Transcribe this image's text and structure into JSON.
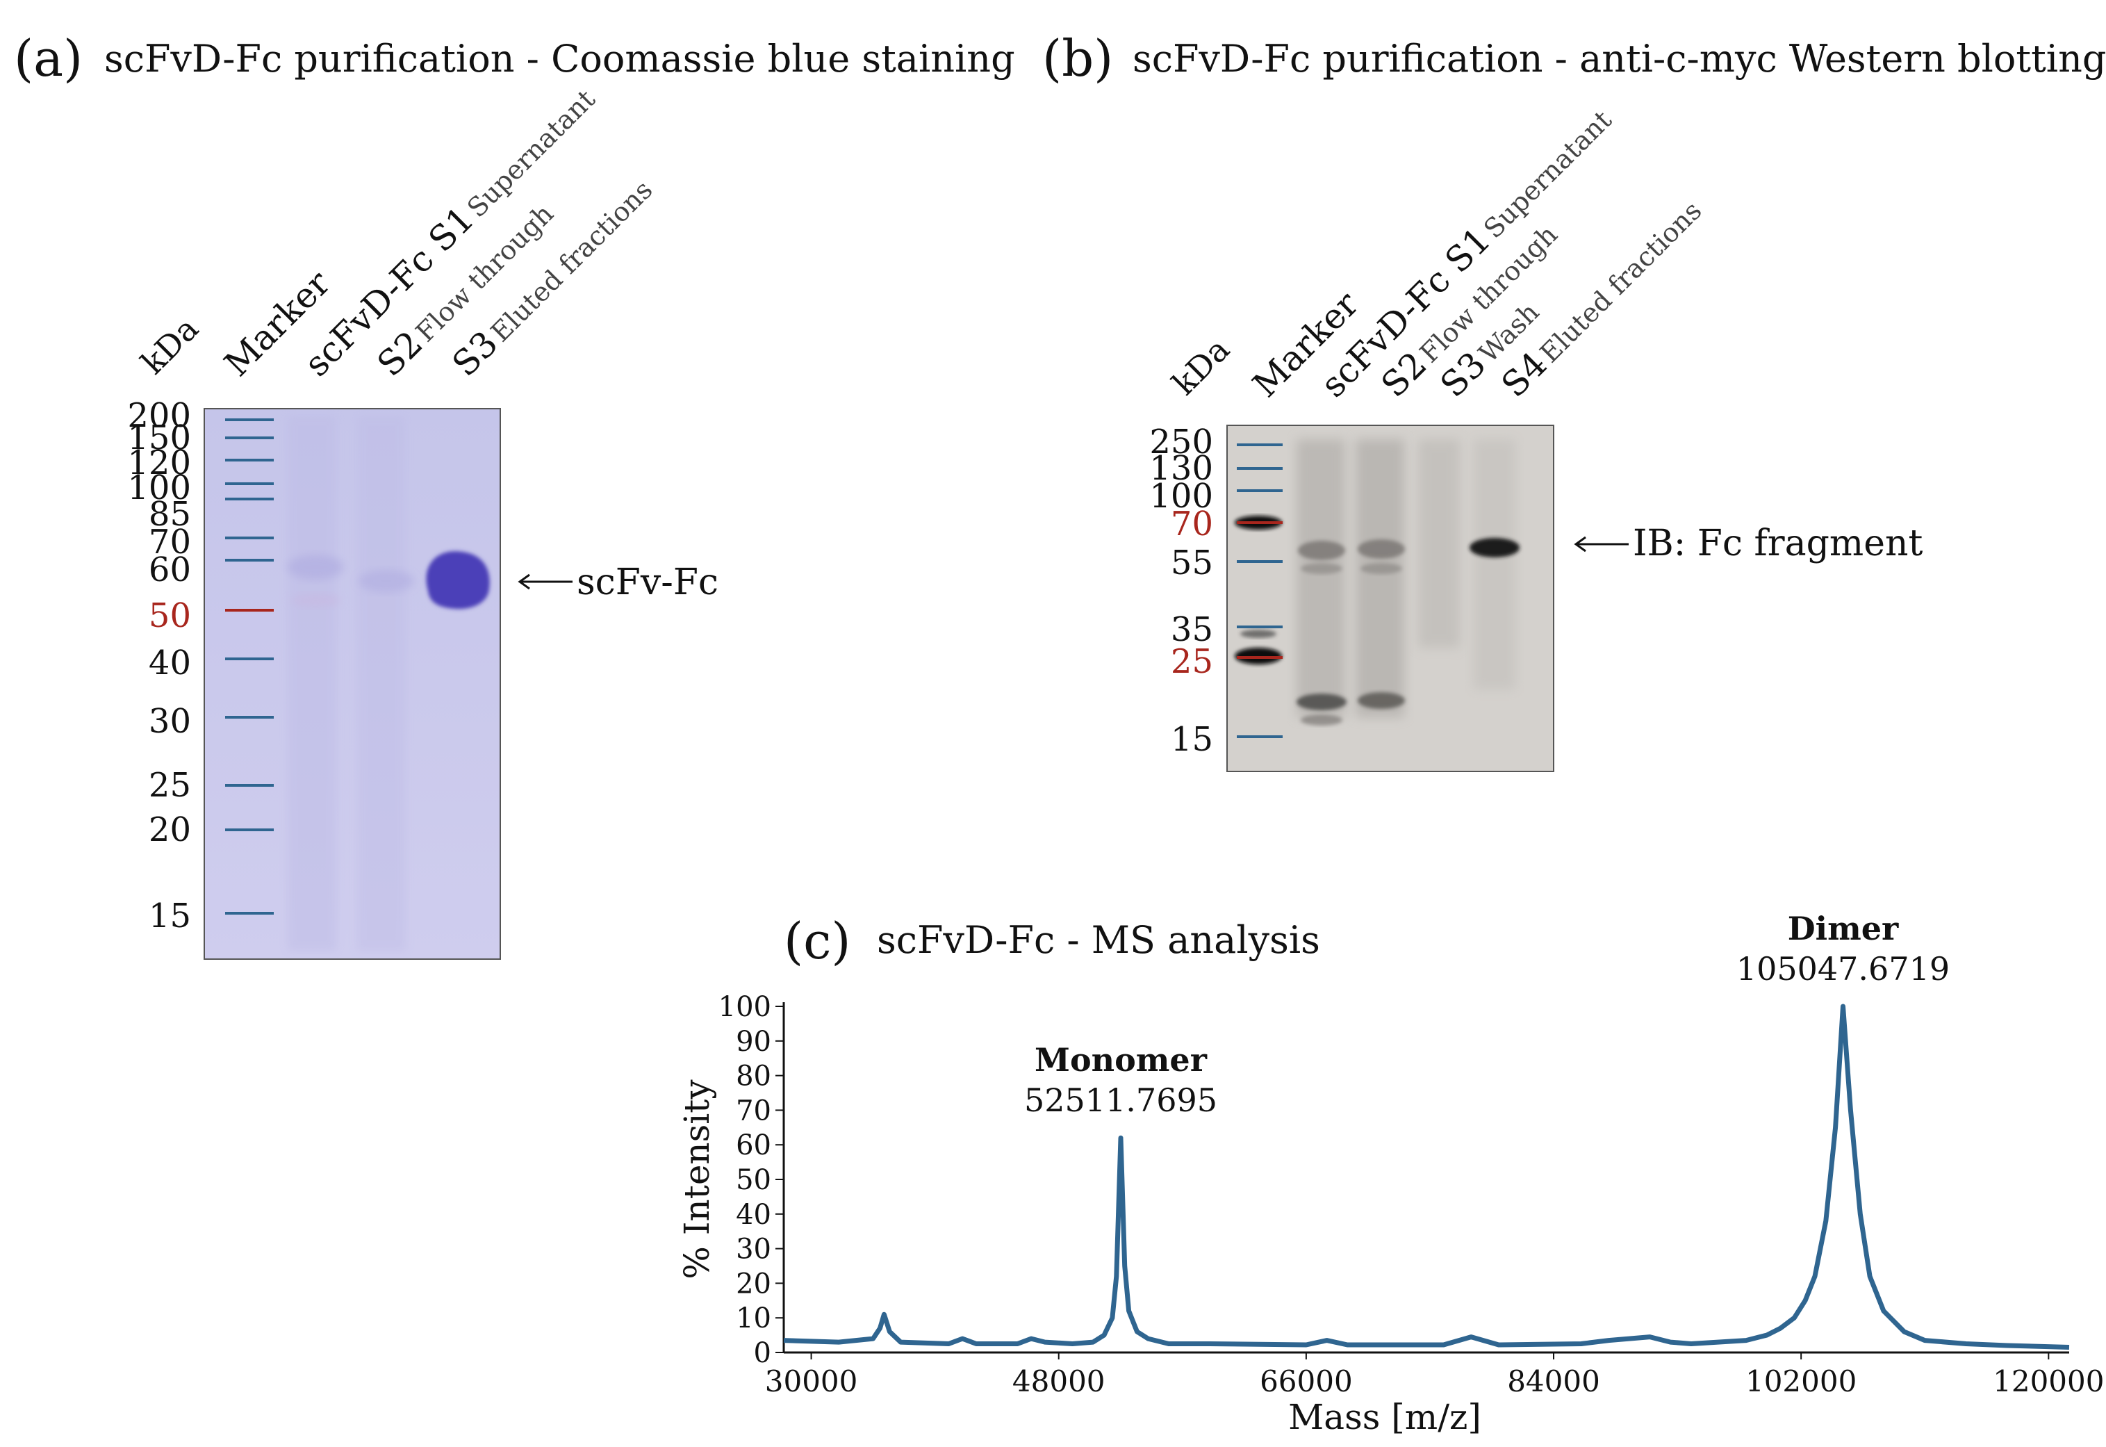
{
  "panel_a": {
    "letter": "(a)",
    "title": "scFvD-Fc purification - Coomassie blue staining",
    "kda_label": "kDa",
    "lanes": [
      {
        "main": "Marker",
        "sub": ""
      },
      {
        "main": "scFvD-Fc S1",
        "sub": "Supernatant"
      },
      {
        "main": "S2",
        "sub": "Flow through"
      },
      {
        "main": "S3",
        "sub": "Eluted fractions"
      }
    ],
    "markers": [
      "200",
      "150",
      "120",
      "100",
      "85",
      "70",
      "60",
      "50",
      "40",
      "30",
      "25",
      "20",
      "15"
    ],
    "highlight_marker": "50",
    "band_label": "scFv-Fc",
    "colors": {
      "gel": "#c9c9ec",
      "band": "#4b3fb8",
      "marker_line": "#2f6590",
      "highlight": "#a8261d"
    }
  },
  "panel_b": {
    "letter": "(b)",
    "title": "scFvD-Fc purification - anti-c-myc Western blotting",
    "kda_label": "kDa",
    "lanes": [
      {
        "main": "Marker",
        "sub": ""
      },
      {
        "main": "scFvD-Fc S1",
        "sub": "Supernatant"
      },
      {
        "main": "S2",
        "sub": "Flow through"
      },
      {
        "main": "S3",
        "sub": "Wash"
      },
      {
        "main": "S4",
        "sub": "Eluted fractions"
      }
    ],
    "markers": [
      "250",
      "130",
      "100",
      "70",
      "55",
      "35",
      "25",
      "15"
    ],
    "highlight_markers": [
      "70",
      "25"
    ],
    "band_label": "IB: Fc fragment",
    "colors": {
      "blot": "#d2cfcb",
      "band": "#1a1a1a"
    }
  },
  "panel_c": {
    "letter": "(c)",
    "title": "scFvD-Fc - MS analysis",
    "chart_data": {
      "type": "line",
      "title": "scFvD-Fc - MS analysis",
      "xlabel": "Mass [m/z]",
      "ylabel": "% Intensity",
      "xlim": [
        28000,
        121500
      ],
      "ylim": [
        0,
        100
      ],
      "x_ticks": [
        30000,
        48000,
        66000,
        84000,
        102000,
        120000
      ],
      "y_ticks": [
        0,
        10,
        20,
        30,
        40,
        50,
        60,
        70,
        80,
        90,
        100
      ],
      "line_color": "#2f6590",
      "series": [
        {
          "name": "% Intensity",
          "x": [
            28000,
            32000,
            34500,
            35000,
            35300,
            35700,
            36500,
            40000,
            41000,
            42000,
            45000,
            46000,
            47000,
            49000,
            50500,
            51300,
            51900,
            52200,
            52512,
            52800,
            53100,
            53700,
            54500,
            56000,
            59000,
            66000,
            67500,
            69000,
            76000,
            78000,
            80000,
            86000,
            88000,
            91000,
            92500,
            94000,
            98000,
            99500,
            100500,
            101500,
            102300,
            103000,
            103800,
            104500,
            105048,
            105600,
            106300,
            107000,
            108000,
            109500,
            111000,
            114000,
            117000,
            121500
          ],
          "y": [
            3.5,
            3,
            4,
            7,
            11,
            6,
            3,
            2.5,
            4,
            2.5,
            2.5,
            4,
            3,
            2.5,
            3,
            5,
            10,
            22,
            62,
            25,
            12,
            6,
            4,
            2.5,
            2.5,
            2.2,
            3.5,
            2.2,
            2.2,
            4.5,
            2.2,
            2.5,
            3.5,
            4.5,
            3,
            2.5,
            3.5,
            5,
            7,
            10,
            15,
            22,
            38,
            65,
            100,
            70,
            40,
            22,
            12,
            6,
            3.5,
            2.5,
            2,
            1.5
          ]
        }
      ],
      "annotations": [
        {
          "label": "Monomer",
          "value": "52511.7695",
          "x": 52512,
          "y": 62
        },
        {
          "label": "Dimer",
          "value": "105047.6719",
          "x": 105048,
          "y": 100
        }
      ]
    }
  }
}
